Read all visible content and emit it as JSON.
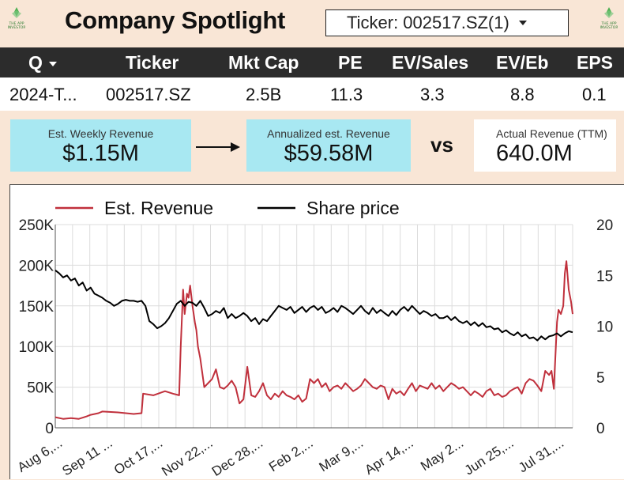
{
  "header": {
    "title": "Company Spotlight",
    "ticker_select": "Ticker: 002517.SZ(1)"
  },
  "table": {
    "columns": [
      "Q",
      "Ticker",
      "Mkt Cap",
      "PE",
      "EV/Sales",
      "EV/Eb",
      "EPS"
    ],
    "row": [
      "2024-T...",
      "002517.SZ",
      "2.5B",
      "11.3",
      "3.3",
      "8.8",
      "0.1"
    ]
  },
  "cards": {
    "weekly_label": "Est. Weekly Revenue",
    "weekly_value": "$1.15M",
    "annual_label": "Annualized est. Revenue",
    "annual_value": "$59.58M",
    "vs": "vs",
    "actual_label": "Actual Revenue (TTM)",
    "actual_value": "640.0M"
  },
  "colors": {
    "background": "#f9e6d6",
    "header_bg": "#2c2c2c",
    "card_blue": "#a8e8f2",
    "revenue_line": "#c0303c",
    "price_line": "#000000"
  },
  "chart_data": {
    "type": "line",
    "legend": [
      "Est. Revenue",
      "Share price"
    ],
    "legend_position": "top",
    "grid": true,
    "x_tick_labels": [
      "Aug 6,...",
      "Sep 11 ...",
      "Oct 17,...",
      "Nov 22,...",
      "Dec 28,...",
      "Feb 2,...",
      "Mar 9,...",
      "Apr 14,...",
      "May 2...",
      "Jun 25,...",
      "Jul 31,..."
    ],
    "y_left": {
      "ticks": [
        "0",
        "50K",
        "100K",
        "150K",
        "200K",
        "250K"
      ],
      "range": [
        0,
        250000
      ]
    },
    "y_right": {
      "ticks": [
        "0",
        "5",
        "10",
        "15",
        "20"
      ],
      "range": [
        0,
        20
      ]
    },
    "series": [
      {
        "name": "Est. Revenue",
        "axis": "left",
        "x": [
          0,
          10,
          20,
          30,
          40,
          45,
          55,
          60,
          80,
          100,
          110,
          112,
          125,
          140,
          150,
          158,
          160,
          163,
          165,
          168,
          170,
          172,
          175,
          178,
          180,
          182,
          185,
          190,
          195,
          200,
          205,
          210,
          215,
          220,
          225,
          230,
          235,
          240,
          245,
          250,
          255,
          260,
          265,
          270,
          275,
          280,
          285,
          290,
          295,
          300,
          305,
          310,
          315,
          320,
          325,
          330,
          335,
          340,
          345,
          350,
          355,
          360,
          365,
          370,
          375,
          380,
          385,
          390,
          395,
          400,
          405,
          410,
          415,
          420,
          425,
          430,
          435,
          440,
          445,
          450,
          455,
          460,
          465,
          470,
          475,
          480,
          485,
          490,
          495,
          500,
          505,
          510,
          515,
          520,
          525,
          530,
          535,
          540,
          545,
          550,
          555,
          560,
          565,
          570,
          575,
          580,
          585,
          590,
          595,
          600,
          605,
          610,
          615,
          620,
          625,
          630,
          633,
          636,
          640,
          642,
          645,
          648,
          650,
          652,
          655,
          658,
          660
        ],
        "values": [
          13000,
          11000,
          12000,
          11000,
          14000,
          16000,
          18000,
          20000,
          19000,
          17000,
          18000,
          42000,
          40000,
          45000,
          42000,
          40000,
          100000,
          170000,
          140000,
          165000,
          160000,
          175000,
          150000,
          130000,
          120000,
          100000,
          85000,
          50000,
          55000,
          60000,
          72000,
          50000,
          48000,
          52000,
          58000,
          50000,
          30000,
          35000,
          75000,
          40000,
          38000,
          45000,
          55000,
          40000,
          35000,
          42000,
          38000,
          45000,
          40000,
          38000,
          35000,
          40000,
          32000,
          36000,
          60000,
          55000,
          60000,
          50000,
          55000,
          45000,
          50000,
          52000,
          48000,
          55000,
          50000,
          45000,
          48000,
          52000,
          60000,
          55000,
          50000,
          48000,
          52000,
          50000,
          35000,
          48000,
          42000,
          45000,
          40000,
          48000,
          55000,
          45000,
          52000,
          50000,
          48000,
          55000,
          48000,
          52000,
          45000,
          50000,
          55000,
          52000,
          48000,
          50000,
          45000,
          40000,
          45000,
          42000,
          38000,
          45000,
          48000,
          40000,
          42000,
          38000,
          40000,
          45000,
          48000,
          50000,
          42000,
          55000,
          60000,
          58000,
          52000,
          45000,
          70000,
          65000,
          70000,
          48000,
          130000,
          145000,
          140000,
          150000,
          190000,
          205000,
          170000,
          155000,
          140000
        ]
      },
      {
        "name": "Share price",
        "axis": "right",
        "x": [
          0,
          5,
          10,
          15,
          20,
          25,
          30,
          35,
          40,
          45,
          50,
          55,
          60,
          65,
          70,
          75,
          80,
          85,
          90,
          95,
          100,
          105,
          110,
          115,
          120,
          125,
          130,
          135,
          140,
          145,
          150,
          155,
          160,
          165,
          170,
          175,
          180,
          185,
          190,
          195,
          200,
          205,
          210,
          215,
          220,
          225,
          230,
          235,
          240,
          245,
          250,
          255,
          260,
          265,
          270,
          275,
          280,
          285,
          290,
          295,
          300,
          305,
          310,
          315,
          320,
          325,
          330,
          335,
          340,
          345,
          350,
          355,
          360,
          365,
          370,
          375,
          380,
          385,
          390,
          395,
          400,
          405,
          410,
          415,
          420,
          425,
          430,
          435,
          440,
          445,
          450,
          455,
          460,
          465,
          470,
          475,
          480,
          485,
          490,
          495,
          500,
          505,
          510,
          515,
          520,
          525,
          530,
          535,
          540,
          545,
          550,
          555,
          560,
          565,
          570,
          575,
          580,
          585,
          590,
          595,
          600,
          605,
          610,
          615,
          620,
          625,
          630,
          635,
          640,
          645,
          650,
          655,
          660
        ],
        "values": [
          15.5,
          15.2,
          14.8,
          15.0,
          14.5,
          14.7,
          14.0,
          14.3,
          13.5,
          13.8,
          13.2,
          13.0,
          12.8,
          12.5,
          12.3,
          12.0,
          12.2,
          12.5,
          12.6,
          12.5,
          12.5,
          12.4,
          12.5,
          12.0,
          10.5,
          10.2,
          9.8,
          10.0,
          10.3,
          10.8,
          11.5,
          12.2,
          12.5,
          12.0,
          12.4,
          12.3,
          12.0,
          12.5,
          11.8,
          11.0,
          11.2,
          11.5,
          11.3,
          11.8,
          10.8,
          11.2,
          10.8,
          11.0,
          11.3,
          11.0,
          10.5,
          10.8,
          10.2,
          10.7,
          10.5,
          11.0,
          11.5,
          12.0,
          11.8,
          11.6,
          11.9,
          11.3,
          11.6,
          11.9,
          11.4,
          11.8,
          12.0,
          11.6,
          11.9,
          11.3,
          11.5,
          11.8,
          11.4,
          12.0,
          11.8,
          11.5,
          11.2,
          11.6,
          12.0,
          11.5,
          11.2,
          11.8,
          11.3,
          11.6,
          11.3,
          11.0,
          11.5,
          11.1,
          11.6,
          11.9,
          11.5,
          12.0,
          11.6,
          11.2,
          11.5,
          11.3,
          11.0,
          11.2,
          10.8,
          10.8,
          11.0,
          10.6,
          10.9,
          10.5,
          10.3,
          10.5,
          10.1,
          10.4,
          10.0,
          10.3,
          9.9,
          10.0,
          9.7,
          9.8,
          9.4,
          9.6,
          9.3,
          9.1,
          9.4,
          9.0,
          9.2,
          8.8,
          8.9,
          8.6,
          9.0,
          8.7,
          9.0,
          9.1,
          9.3,
          9.0,
          9.3,
          9.5,
          9.4
        ]
      }
    ]
  }
}
